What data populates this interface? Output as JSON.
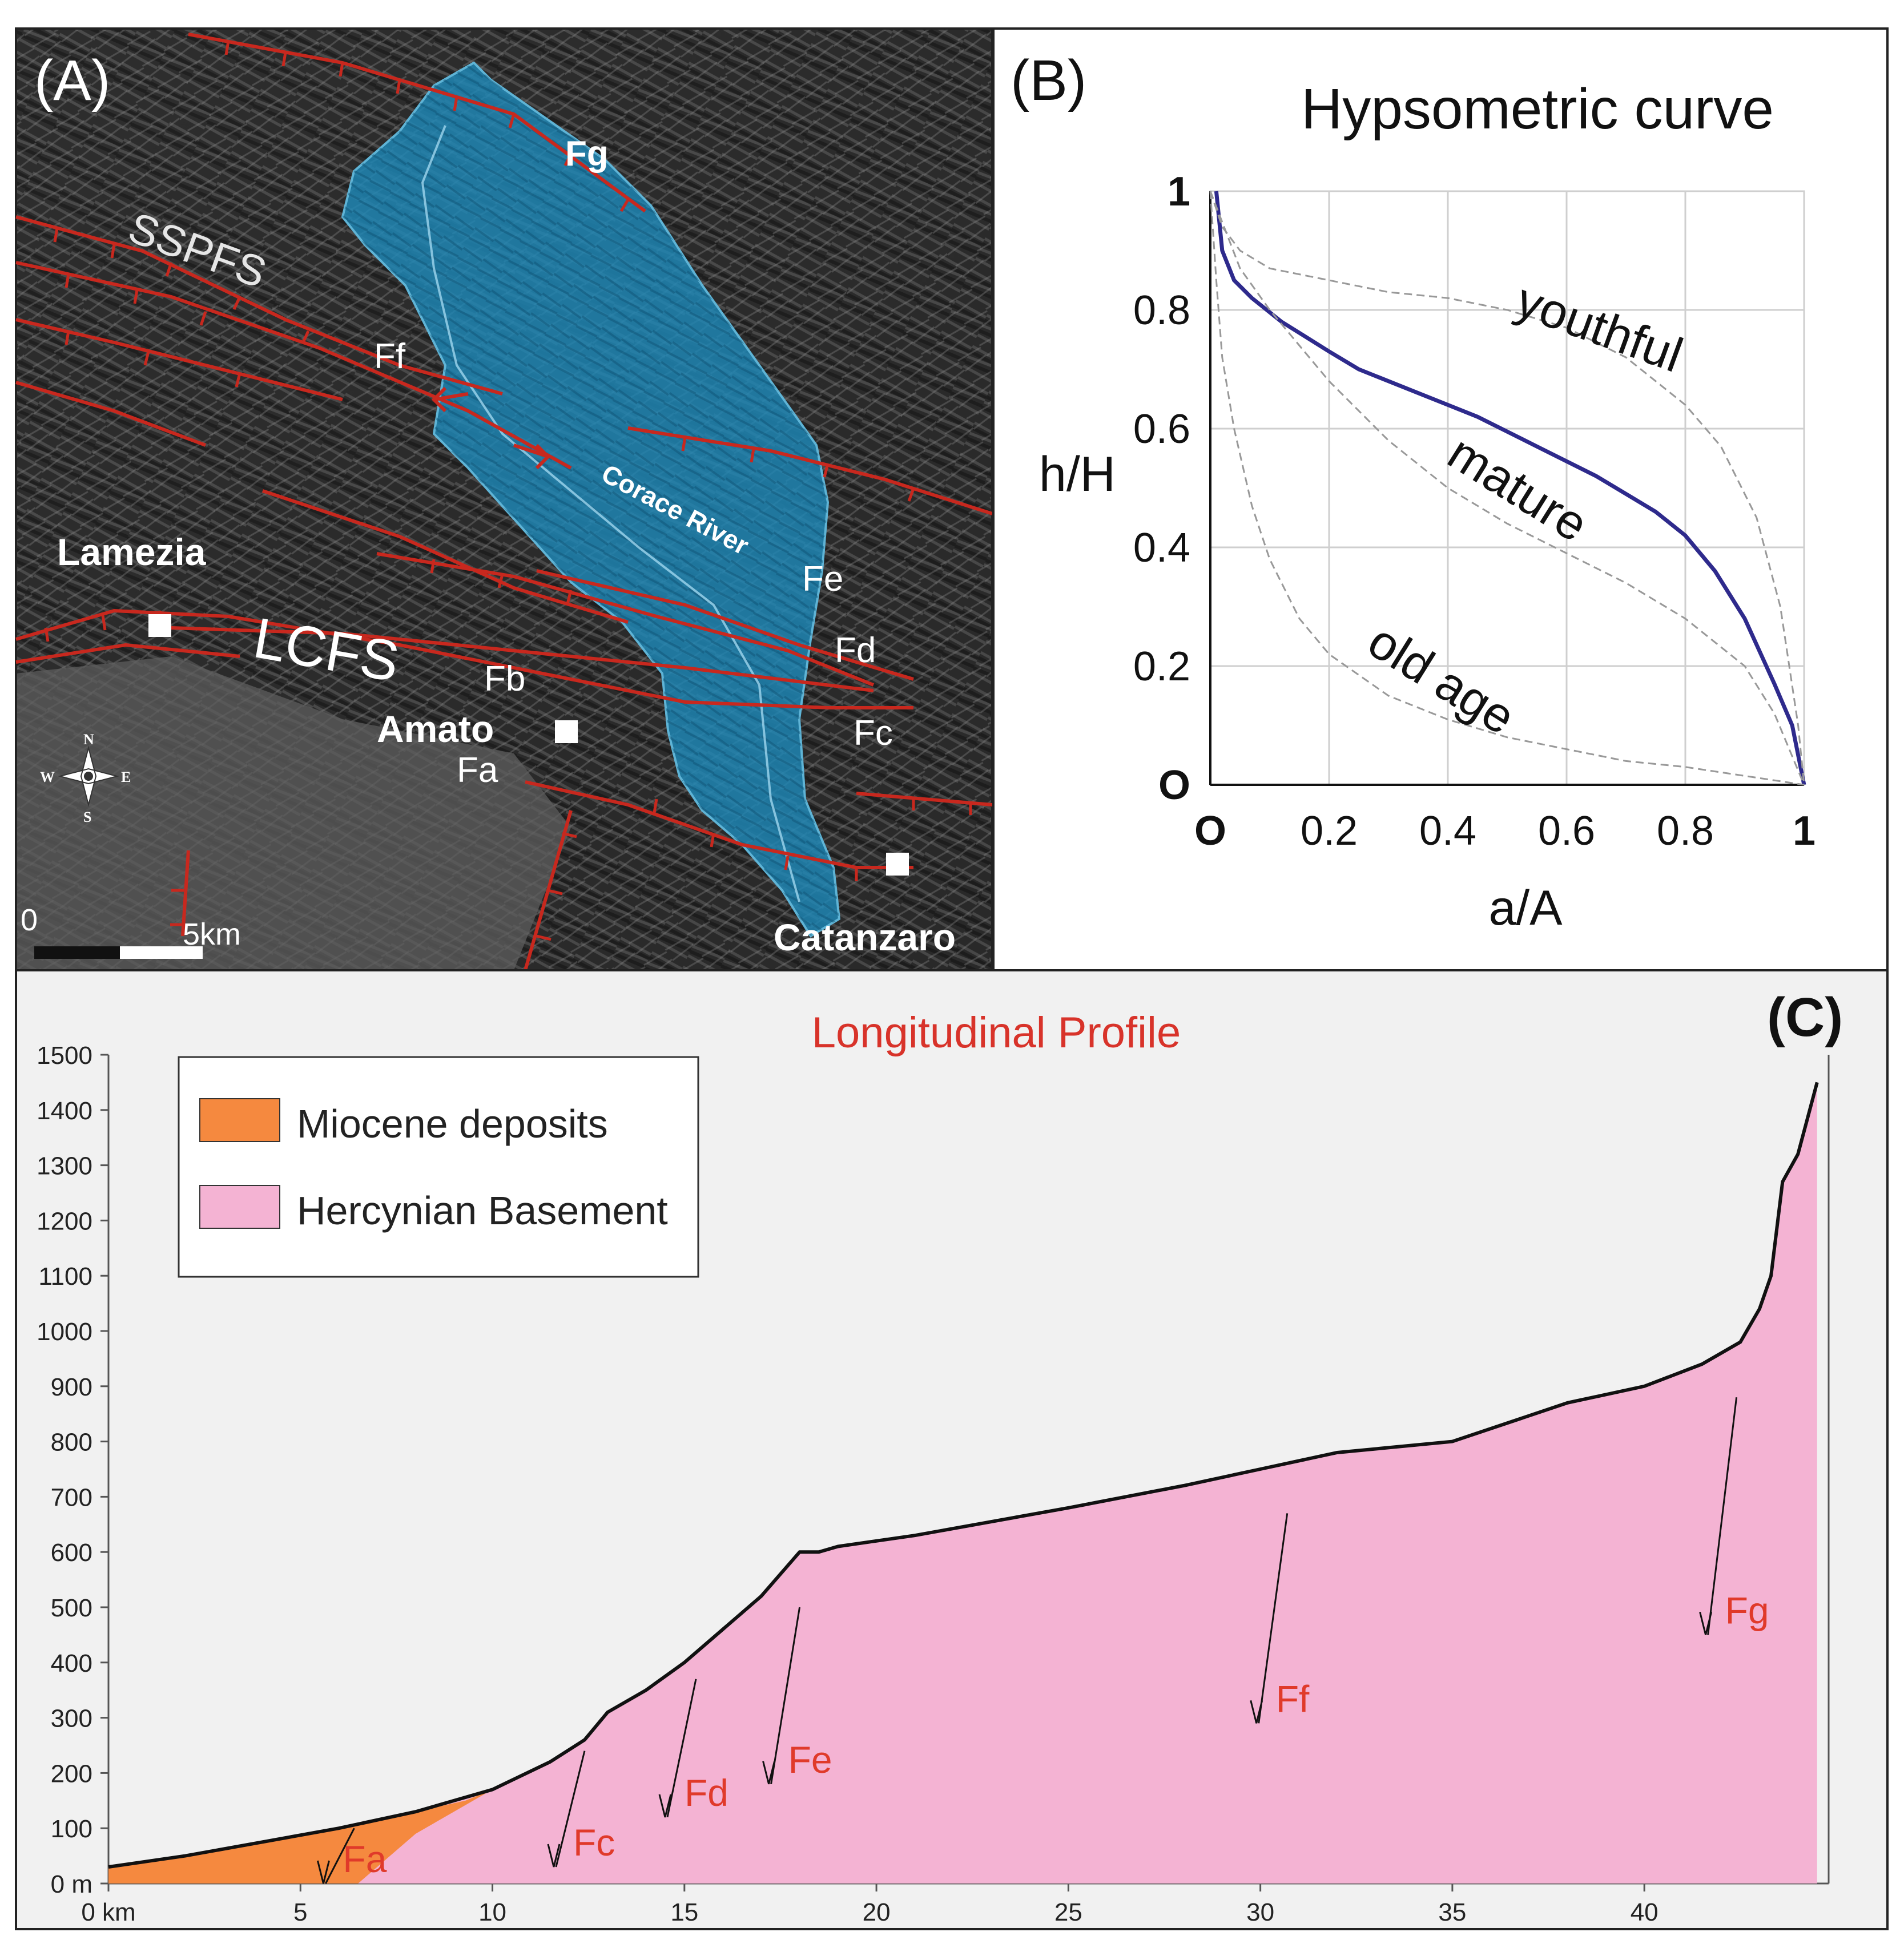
{
  "panel_a": {
    "label": "(A)",
    "towns": [
      "Lamezia",
      "Amato",
      "Catanzaro"
    ],
    "fault_systems": [
      "SSPFS",
      "LCFS"
    ],
    "faults": [
      "Fa",
      "Fb",
      "Fc",
      "Fd",
      "Fe",
      "Ff",
      "Fg"
    ],
    "river": "Corace River",
    "compass": {
      "n": "N",
      "s": "S",
      "e": "E",
      "w": "W"
    },
    "scale": {
      "start": "0",
      "end": "5km"
    },
    "colors": {
      "basin": "#1f89b8",
      "fault": "#c8281e"
    }
  },
  "panel_b": {
    "label": "(B)",
    "title": "Hypsometric curve",
    "xlabel": "a/A",
    "ylabel": "h/H",
    "x_ticks": [
      "O",
      "0.2",
      "0.4",
      "0.6",
      "0.8",
      "1"
    ],
    "y_ticks": [
      "O",
      "0.2",
      "0.4",
      "0.6",
      "0.8",
      "1"
    ],
    "curve_labels": {
      "youthful": "youthful",
      "mature": "mature",
      "old": "old age"
    }
  },
  "panel_c": {
    "label": "(C)",
    "title": "Longitudinal Profile",
    "legend": [
      {
        "label": "Miocene deposits",
        "color": "#f5893f"
      },
      {
        "label": "Hercynian Basement",
        "color": "#f4b3d3"
      }
    ],
    "x_ticks": [
      "0 km",
      "5",
      "10",
      "15",
      "20",
      "25",
      "30",
      "35",
      "40"
    ],
    "y_ticks": [
      "0 m",
      "100",
      "200",
      "300",
      "400",
      "500",
      "600",
      "700",
      "800",
      "900",
      "1000",
      "1100",
      "1200",
      "1300",
      "1400",
      "1500"
    ],
    "faults": [
      "Fa",
      "Fc",
      "Fd",
      "Fe",
      "Ff",
      "Fg"
    ],
    "fault_color": "#e03a2a"
  },
  "chart_data": [
    {
      "type": "line",
      "title": "Hypsometric curve",
      "xlabel": "a/A",
      "ylabel": "h/H",
      "xlim": [
        0,
        1
      ],
      "ylim": [
        0,
        1
      ],
      "grid": true,
      "series": [
        {
          "name": "",
          "color": "#2e2a8c",
          "x": [
            0.01,
            0.02,
            0.04,
            0.07,
            0.12,
            0.2,
            0.25,
            0.35,
            0.45,
            0.55,
            0.65,
            0.7,
            0.75,
            0.8,
            0.85,
            0.9,
            0.95,
            0.98,
            1.0
          ],
          "y": [
            1.0,
            0.9,
            0.85,
            0.82,
            0.78,
            0.73,
            0.7,
            0.66,
            0.62,
            0.57,
            0.52,
            0.49,
            0.46,
            0.42,
            0.36,
            0.28,
            0.17,
            0.1,
            0.0
          ]
        },
        {
          "name": "youthful",
          "color": "#999999",
          "x": [
            0.0,
            0.02,
            0.05,
            0.1,
            0.2,
            0.3,
            0.4,
            0.5,
            0.6,
            0.7,
            0.8,
            0.86,
            0.92,
            0.96,
            0.99,
            1.0
          ],
          "y": [
            1.0,
            0.94,
            0.9,
            0.87,
            0.85,
            0.83,
            0.82,
            0.8,
            0.77,
            0.72,
            0.64,
            0.57,
            0.45,
            0.3,
            0.1,
            0.0
          ]
        },
        {
          "name": "mature",
          "color": "#999999",
          "x": [
            0.0,
            0.05,
            0.1,
            0.2,
            0.3,
            0.4,
            0.5,
            0.6,
            0.7,
            0.8,
            0.9,
            0.95,
            1.0
          ],
          "y": [
            1.0,
            0.87,
            0.8,
            0.68,
            0.58,
            0.5,
            0.44,
            0.39,
            0.34,
            0.28,
            0.2,
            0.12,
            0.0
          ]
        },
        {
          "name": "old age",
          "color": "#999999",
          "x": [
            0.0,
            0.01,
            0.02,
            0.04,
            0.07,
            0.1,
            0.15,
            0.2,
            0.3,
            0.4,
            0.5,
            0.6,
            0.7,
            0.8,
            0.9,
            1.0
          ],
          "y": [
            1.0,
            0.85,
            0.72,
            0.6,
            0.47,
            0.38,
            0.28,
            0.22,
            0.15,
            0.11,
            0.08,
            0.06,
            0.04,
            0.03,
            0.015,
            0.0
          ]
        }
      ]
    },
    {
      "type": "area",
      "title": "Longitudinal Profile",
      "xlabel": "km",
      "ylabel": "m",
      "xlim": [
        0,
        44.8
      ],
      "ylim": [
        0,
        1500
      ],
      "series": [
        {
          "name": "Hercynian Basement",
          "color": "#f4b3d3",
          "x": [
            0,
            2,
            4,
            6,
            8,
            10,
            11.5,
            12.4,
            13,
            14,
            15,
            16,
            17,
            18,
            18.5,
            19,
            20,
            21,
            25,
            28,
            30,
            32,
            35,
            38,
            40,
            41.5,
            42.5,
            43.0,
            43.3,
            43.6,
            44.0,
            44.5
          ],
          "y": [
            30,
            50,
            75,
            100,
            130,
            170,
            220,
            260,
            310,
            350,
            400,
            460,
            520,
            600,
            600,
            610,
            620,
            630,
            680,
            720,
            750,
            780,
            800,
            870,
            900,
            940,
            980,
            1040,
            1100,
            1270,
            1320,
            1450
          ]
        },
        {
          "name": "Miocene deposits",
          "color": "#f5893f",
          "x": [
            0,
            2,
            4,
            6,
            8,
            9.3,
            10,
            8,
            6.5,
            6,
            4,
            2,
            0
          ],
          "y": [
            30,
            50,
            75,
            100,
            130,
            150,
            170,
            90,
            0,
            0,
            0,
            0,
            0
          ]
        }
      ],
      "faults": [
        {
          "name": "Fa",
          "x": 6.4,
          "top": 100,
          "bottom": 0
        },
        {
          "name": "Fc",
          "x": 12.4,
          "top": 240,
          "bottom": 30
        },
        {
          "name": "Fd",
          "x": 15.3,
          "top": 370,
          "bottom": 120
        },
        {
          "name": "Fe",
          "x": 18.0,
          "top": 500,
          "bottom": 180
        },
        {
          "name": "Ff",
          "x": 30.7,
          "top": 670,
          "bottom": 290
        },
        {
          "name": "Fg",
          "x": 42.4,
          "top": 880,
          "bottom": 450
        }
      ]
    }
  ]
}
